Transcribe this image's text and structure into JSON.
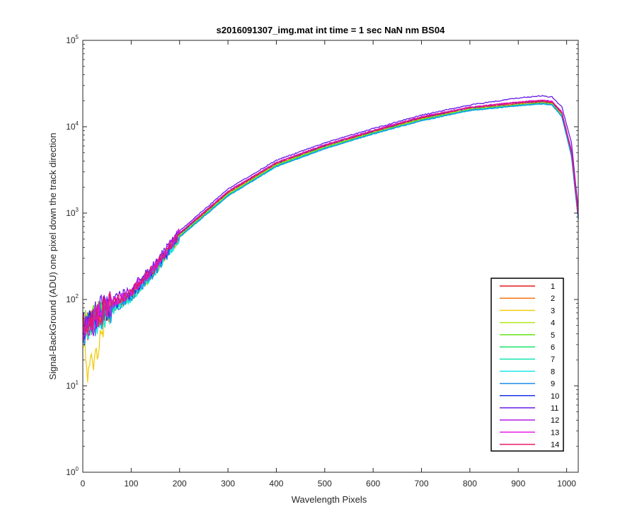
{
  "chart_data": {
    "type": "line",
    "title": "s2016091307_img.mat int time = 1 sec  NaN nm BS04",
    "xlabel": "Wavelength Pixels",
    "ylabel": "Signal-BackGround (ADU) one pixel down the track direction",
    "xlim": [
      0,
      1024
    ],
    "ylim": [
      1,
      100000
    ],
    "yscale": "log",
    "xticks": [
      0,
      100,
      200,
      300,
      400,
      500,
      600,
      700,
      800,
      900,
      1000
    ],
    "yticks": [
      {
        "value": 1,
        "base": "10",
        "exp": "0"
      },
      {
        "value": 10,
        "base": "10",
        "exp": "1"
      },
      {
        "value": 100,
        "base": "10",
        "exp": "2"
      },
      {
        "value": 1000,
        "base": "10",
        "exp": "3"
      },
      {
        "value": 10000,
        "base": "10",
        "exp": "4"
      },
      {
        "value": 100000,
        "base": "10",
        "exp": "5"
      }
    ],
    "grid": false,
    "legend_position": "bottom-right",
    "x": [
      0,
      10,
      50,
      100,
      150,
      200,
      300,
      400,
      500,
      600,
      700,
      800,
      900,
      950,
      970,
      990,
      1010,
      1024
    ],
    "series": [
      {
        "name": "1",
        "color": "#e6191f",
        "values": [
          45,
          50,
          75,
          115,
          230,
          560,
          1700,
          3700,
          5900,
          8700,
          12500,
          16200,
          18500,
          19400,
          18800,
          14000,
          5000,
          900
        ]
      },
      {
        "name": "2",
        "color": "#f2751a",
        "values": [
          44,
          48,
          72,
          112,
          225,
          550,
          1650,
          3600,
          5800,
          8500,
          12200,
          15900,
          18000,
          18900,
          18300,
          13600,
          4800,
          880
        ]
      },
      {
        "name": "3",
        "color": "#f2cc0d",
        "values": [
          40,
          12,
          70,
          110,
          220,
          540,
          1620,
          3550,
          5700,
          8400,
          12000,
          15700,
          17800,
          18700,
          18100,
          13400,
          4700,
          870
        ]
      },
      {
        "name": "4",
        "color": "#b3e61a",
        "values": [
          48,
          52,
          74,
          113,
          226,
          552,
          1660,
          3620,
          5820,
          8550,
          12250,
          15950,
          18100,
          19000,
          18400,
          13700,
          4850,
          885
        ]
      },
      {
        "name": "5",
        "color": "#66e61a",
        "values": [
          50,
          55,
          80,
          110,
          222,
          545,
          1640,
          3580,
          5750,
          8450,
          12100,
          15800,
          17900,
          18800,
          18200,
          13500,
          4750,
          875
        ]
      },
      {
        "name": "6",
        "color": "#1ae666",
        "values": [
          46,
          50,
          76,
          108,
          218,
          535,
          1610,
          3520,
          5650,
          8350,
          11900,
          15600,
          17700,
          18600,
          18000,
          13300,
          4650,
          860
        ]
      },
      {
        "name": "7",
        "color": "#1ae6b3",
        "values": [
          44,
          48,
          73,
          106,
          215,
          530,
          1590,
          3480,
          5600,
          8300,
          11800,
          15500,
          17600,
          18500,
          17900,
          13200,
          4600,
          855
        ]
      },
      {
        "name": "8",
        "color": "#1ae6e6",
        "values": [
          42,
          46,
          70,
          104,
          212,
          525,
          1570,
          3450,
          5550,
          8250,
          11700,
          15400,
          17500,
          18400,
          17800,
          13100,
          4550,
          850
        ]
      },
      {
        "name": "9",
        "color": "#1a8ce6",
        "values": [
          40,
          45,
          72,
          105,
          214,
          528,
          1580,
          3470,
          5580,
          8280,
          11750,
          15450,
          17550,
          18450,
          17850,
          13150,
          4580,
          852
        ]
      },
      {
        "name": "10",
        "color": "#1a33e6",
        "values": [
          44,
          50,
          78,
          118,
          236,
          575,
          1750,
          3800,
          6050,
          8900,
          12800,
          16600,
          19000,
          19900,
          19300,
          14400,
          5150,
          930
        ]
      },
      {
        "name": "11",
        "color": "#661ae6",
        "values": [
          48,
          55,
          90,
          130,
          255,
          620,
          1900,
          4100,
          6500,
          9500,
          13600,
          17800,
          21500,
          22800,
          22000,
          17000,
          6500,
          1100
        ]
      },
      {
        "name": "12",
        "color": "#b31ae6",
        "values": [
          40,
          46,
          80,
          120,
          240,
          585,
          1780,
          3850,
          6150,
          9050,
          13000,
          16800,
          19200,
          20200,
          19600,
          14700,
          5250,
          950
        ]
      },
      {
        "name": "13",
        "color": "#e61ae6",
        "values": [
          46,
          52,
          82,
          122,
          242,
          590,
          1790,
          3870,
          6180,
          9100,
          13050,
          16900,
          19400,
          20300,
          19700,
          14800,
          5300,
          960
        ]
      },
      {
        "name": "14",
        "color": "#e61a66",
        "values": [
          47,
          54,
          85,
          120,
          238,
          580,
          1760,
          3820,
          6100,
          8950,
          12900,
          16700,
          19100,
          20000,
          19400,
          14500,
          5200,
          940
        ]
      }
    ]
  }
}
